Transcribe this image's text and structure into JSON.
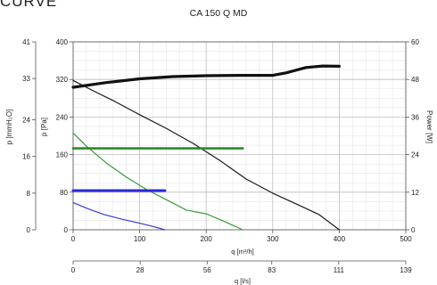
{
  "page": {
    "heading": "CURVE"
  },
  "chart_data": {
    "type": "line",
    "title": "CA 150 Q MD",
    "x_axis_main": {
      "label": "q [m³/h]",
      "range": [
        0,
        500
      ],
      "ticks": [
        "0",
        "100",
        "200",
        "300",
        "400",
        "500"
      ],
      "tick_values": [
        0,
        100,
        200,
        300,
        400,
        500
      ]
    },
    "x_axis_secondary": {
      "label": "q [l/s]",
      "range": [
        0,
        139
      ],
      "ticks": [
        "0",
        "28",
        "56",
        "83",
        "111",
        "139"
      ],
      "tick_values": [
        0,
        28,
        56,
        83,
        111,
        139
      ]
    },
    "y_axis_pa": {
      "label": "p [Pa]",
      "range": [
        0,
        400
      ],
      "ticks": [
        "0",
        "80",
        "160",
        "240",
        "320",
        "400"
      ],
      "tick_values": [
        0,
        80,
        160,
        240,
        320,
        400
      ]
    },
    "y_axis_mmh2o": {
      "label": "p [mmH₂O]",
      "range": [
        0,
        41
      ],
      "ticks": [
        "0",
        "8",
        "16",
        "24",
        "33",
        "41"
      ],
      "tick_values": [
        0,
        8,
        16,
        24,
        33,
        41
      ]
    },
    "y_axis_power": {
      "label": "Power [W]",
      "range": [
        0,
        60
      ],
      "ticks": [
        "0",
        "12",
        "24",
        "36",
        "48",
        "60"
      ],
      "tick_values": [
        0,
        12,
        24,
        36,
        48,
        60
      ]
    },
    "grid": true,
    "series": [
      {
        "kind": "pressure",
        "color": "#1a1a1a",
        "width": 1.2,
        "axis": "pa",
        "points": [
          [
            0,
            318
          ],
          [
            30,
            296
          ],
          [
            60,
            275
          ],
          [
            100,
            245
          ],
          [
            140,
            216
          ],
          [
            180,
            184
          ],
          [
            220,
            148
          ],
          [
            260,
            108
          ],
          [
            300,
            78
          ],
          [
            340,
            52
          ],
          [
            370,
            32
          ],
          [
            400,
            0
          ]
        ]
      },
      {
        "kind": "pressure",
        "color": "#3a9a3a",
        "width": 1.2,
        "axis": "pa",
        "points": [
          [
            0,
            206
          ],
          [
            20,
            178
          ],
          [
            50,
            142
          ],
          [
            80,
            112
          ],
          [
            110,
            86
          ],
          [
            140,
            64
          ],
          [
            170,
            42
          ],
          [
            200,
            34
          ],
          [
            230,
            16
          ],
          [
            255,
            0
          ]
        ]
      },
      {
        "kind": "pressure",
        "color": "#3a3ad0",
        "width": 1.2,
        "axis": "pa",
        "points": [
          [
            0,
            58
          ],
          [
            20,
            46
          ],
          [
            45,
            33
          ],
          [
            75,
            22
          ],
          [
            100,
            14
          ],
          [
            120,
            7
          ],
          [
            138,
            0
          ]
        ]
      },
      {
        "kind": "power",
        "color": "#111111",
        "width": 3.2,
        "axis": "power",
        "points": [
          [
            0,
            45.5
          ],
          [
            50,
            47.0
          ],
          [
            100,
            48.2
          ],
          [
            150,
            48.9
          ],
          [
            200,
            49.2
          ],
          [
            250,
            49.3
          ],
          [
            300,
            49.3
          ],
          [
            320,
            50.1
          ],
          [
            350,
            51.8
          ],
          [
            375,
            52.3
          ],
          [
            400,
            52.2
          ]
        ]
      },
      {
        "kind": "power",
        "color": "#2a8a2a",
        "width": 2.6,
        "axis": "power",
        "points": [
          [
            0,
            26.0
          ],
          [
            255,
            26.0
          ]
        ]
      },
      {
        "kind": "power",
        "color": "#2a2ad8",
        "width": 3.0,
        "axis": "power",
        "points": [
          [
            0,
            12.5
          ],
          [
            138,
            12.5
          ]
        ]
      }
    ]
  }
}
